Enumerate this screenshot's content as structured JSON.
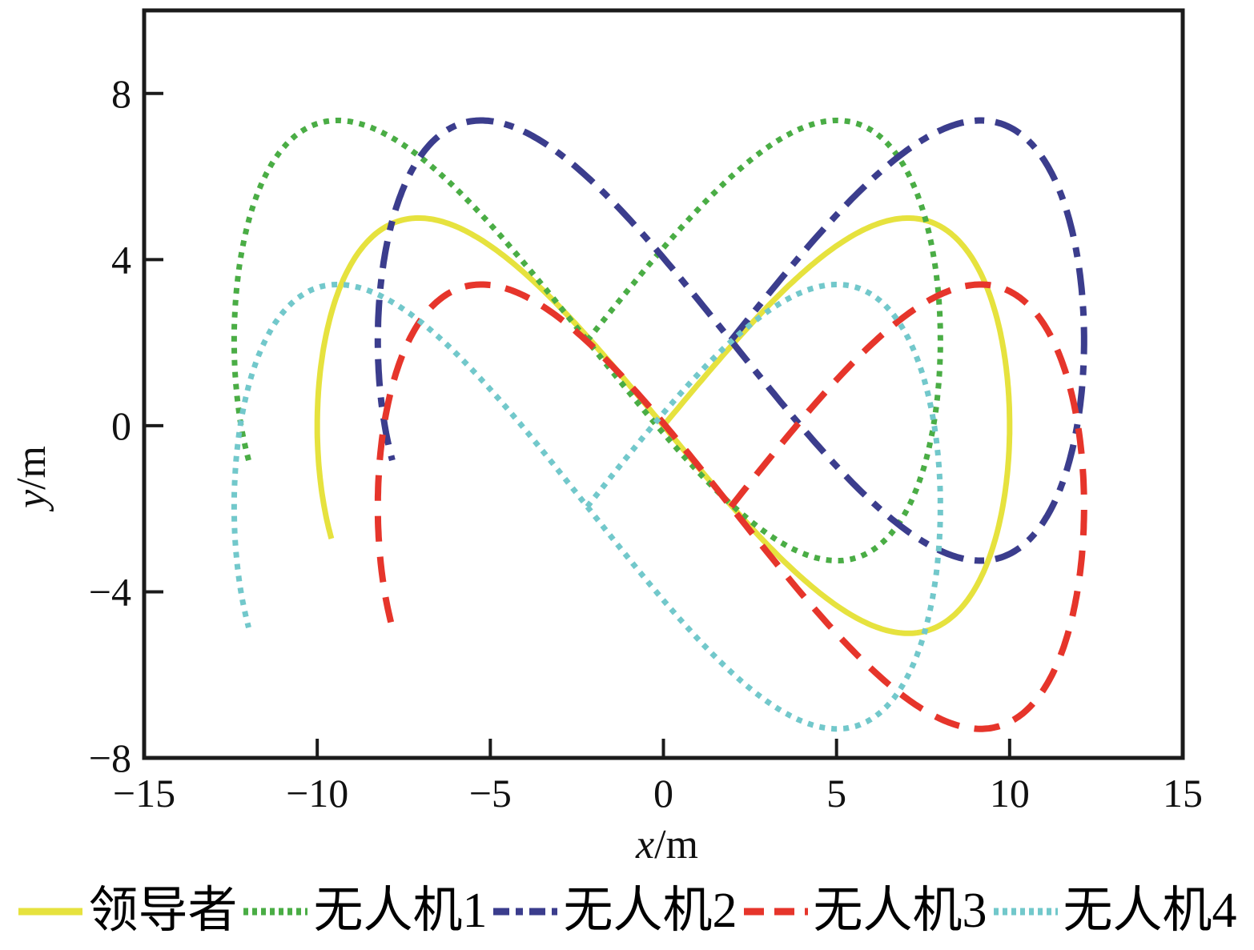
{
  "figure": {
    "xlabel": {
      "variable": "x",
      "unit": "/m"
    },
    "ylabel": {
      "variable": "y",
      "unit": "/m"
    }
  },
  "legend": {
    "position": "bottom",
    "items": [
      {
        "label": "领导者",
        "color": "#e6e23e",
        "style": "solid"
      },
      {
        "label": "无人机1",
        "color": "#4aad45",
        "style": "dotted"
      },
      {
        "label": "无人机2",
        "color": "#3b3d8d",
        "style": "dash-dot"
      },
      {
        "label": "无人机3",
        "color": "#e6352b",
        "style": "dashed"
      },
      {
        "label": "无人机4",
        "color": "#72c8cb",
        "style": "dotted"
      }
    ]
  },
  "chart_data": {
    "type": "line",
    "title": "",
    "xlabel": "x/m",
    "ylabel": "y/m",
    "xlim": [
      -15,
      15
    ],
    "ylim": [
      -8,
      10
    ],
    "xticks": [
      -15,
      -10,
      -5,
      0,
      5,
      10,
      15
    ],
    "yticks": [
      -8,
      -4,
      0,
      4,
      8
    ],
    "grid": false,
    "legend_position": "bottom",
    "description": "Figure-eight (Lissajous) formation trajectories of a leader and four follower UAVs in the x-y plane",
    "curve_model": "x(t) = cx + ax*sin(t), y(t) = cy + ay*sin(2t), t from t0 to t1 rad",
    "series": [
      {
        "name": "领导者",
        "color": "#e6e23e",
        "line_style": "solid",
        "line_width": 7,
        "center": [
          0,
          0
        ],
        "amplitude": [
          10,
          5
        ],
        "t_range": [
          0,
          5.0
        ],
        "start_point": [
          0,
          0
        ],
        "end_point": [
          -9.6,
          -2.7
        ],
        "x_extent": [
          -10,
          10
        ],
        "y_extent": [
          -5,
          5
        ],
        "peaks": [
          [
            -7.1,
            5.0
          ],
          [
            7.1,
            5.0
          ]
        ],
        "troughs": [
          [
            7.1,
            -5.0
          ]
        ]
      },
      {
        "name": "无人机1",
        "color": "#4aad45",
        "line_style": "dotted",
        "line_width": 7,
        "center": [
          -2.2,
          2.05
        ],
        "amplitude": [
          10.2,
          5.3
        ],
        "t_range": [
          0,
          5.0
        ],
        "start_point": [
          -2.2,
          2.05
        ],
        "end_point": [
          -12.0,
          -0.8
        ],
        "x_extent": [
          -12.4,
          8.0
        ],
        "y_extent": [
          -3.25,
          7.35
        ],
        "peaks": [
          [
            -9.4,
            7.35
          ],
          [
            5.0,
            7.35
          ]
        ],
        "troughs": [
          [
            5.0,
            -3.25
          ]
        ]
      },
      {
        "name": "无人机2",
        "color": "#3b3d8d",
        "line_style": "dash-dot",
        "line_width": 8,
        "center": [
          1.95,
          2.05
        ],
        "amplitude": [
          10.2,
          5.3
        ],
        "t_range": [
          0,
          5.0
        ],
        "start_point": [
          1.95,
          2.05
        ],
        "end_point": [
          -7.8,
          -0.8
        ],
        "x_extent": [
          -8.25,
          12.15
        ],
        "y_extent": [
          -3.25,
          7.35
        ],
        "peaks": [
          [
            -5.3,
            7.35
          ],
          [
            9.2,
            7.35
          ]
        ],
        "troughs": [
          [
            9.2,
            -3.25
          ]
        ]
      },
      {
        "name": "无人机3",
        "color": "#e6352b",
        "line_style": "dashed",
        "line_width": 8,
        "center": [
          1.95,
          -1.95
        ],
        "amplitude": [
          10.2,
          5.35
        ],
        "t_range": [
          0,
          5.0
        ],
        "start_point": [
          1.95,
          -1.95
        ],
        "end_point": [
          -7.8,
          -4.9
        ],
        "x_extent": [
          -8.25,
          12.15
        ],
        "y_extent": [
          -7.3,
          3.4
        ],
        "peaks": [
          [
            -5.3,
            3.4
          ],
          [
            9.2,
            3.4
          ]
        ],
        "troughs": [
          [
            9.2,
            -7.3
          ]
        ]
      },
      {
        "name": "无人机4",
        "color": "#72c8cb",
        "line_style": "dotted",
        "line_width": 7,
        "center": [
          -2.2,
          -1.95
        ],
        "amplitude": [
          10.2,
          5.35
        ],
        "t_range": [
          0,
          5.0
        ],
        "start_point": [
          -2.2,
          -1.95
        ],
        "end_point": [
          -12.0,
          -4.9
        ],
        "x_extent": [
          -12.4,
          8.0
        ],
        "y_extent": [
          -7.3,
          3.4
        ],
        "peaks": [
          [
            -9.4,
            3.4
          ],
          [
            5.0,
            3.4
          ]
        ],
        "troughs": [
          [
            5.0,
            -7.3
          ]
        ]
      }
    ]
  }
}
